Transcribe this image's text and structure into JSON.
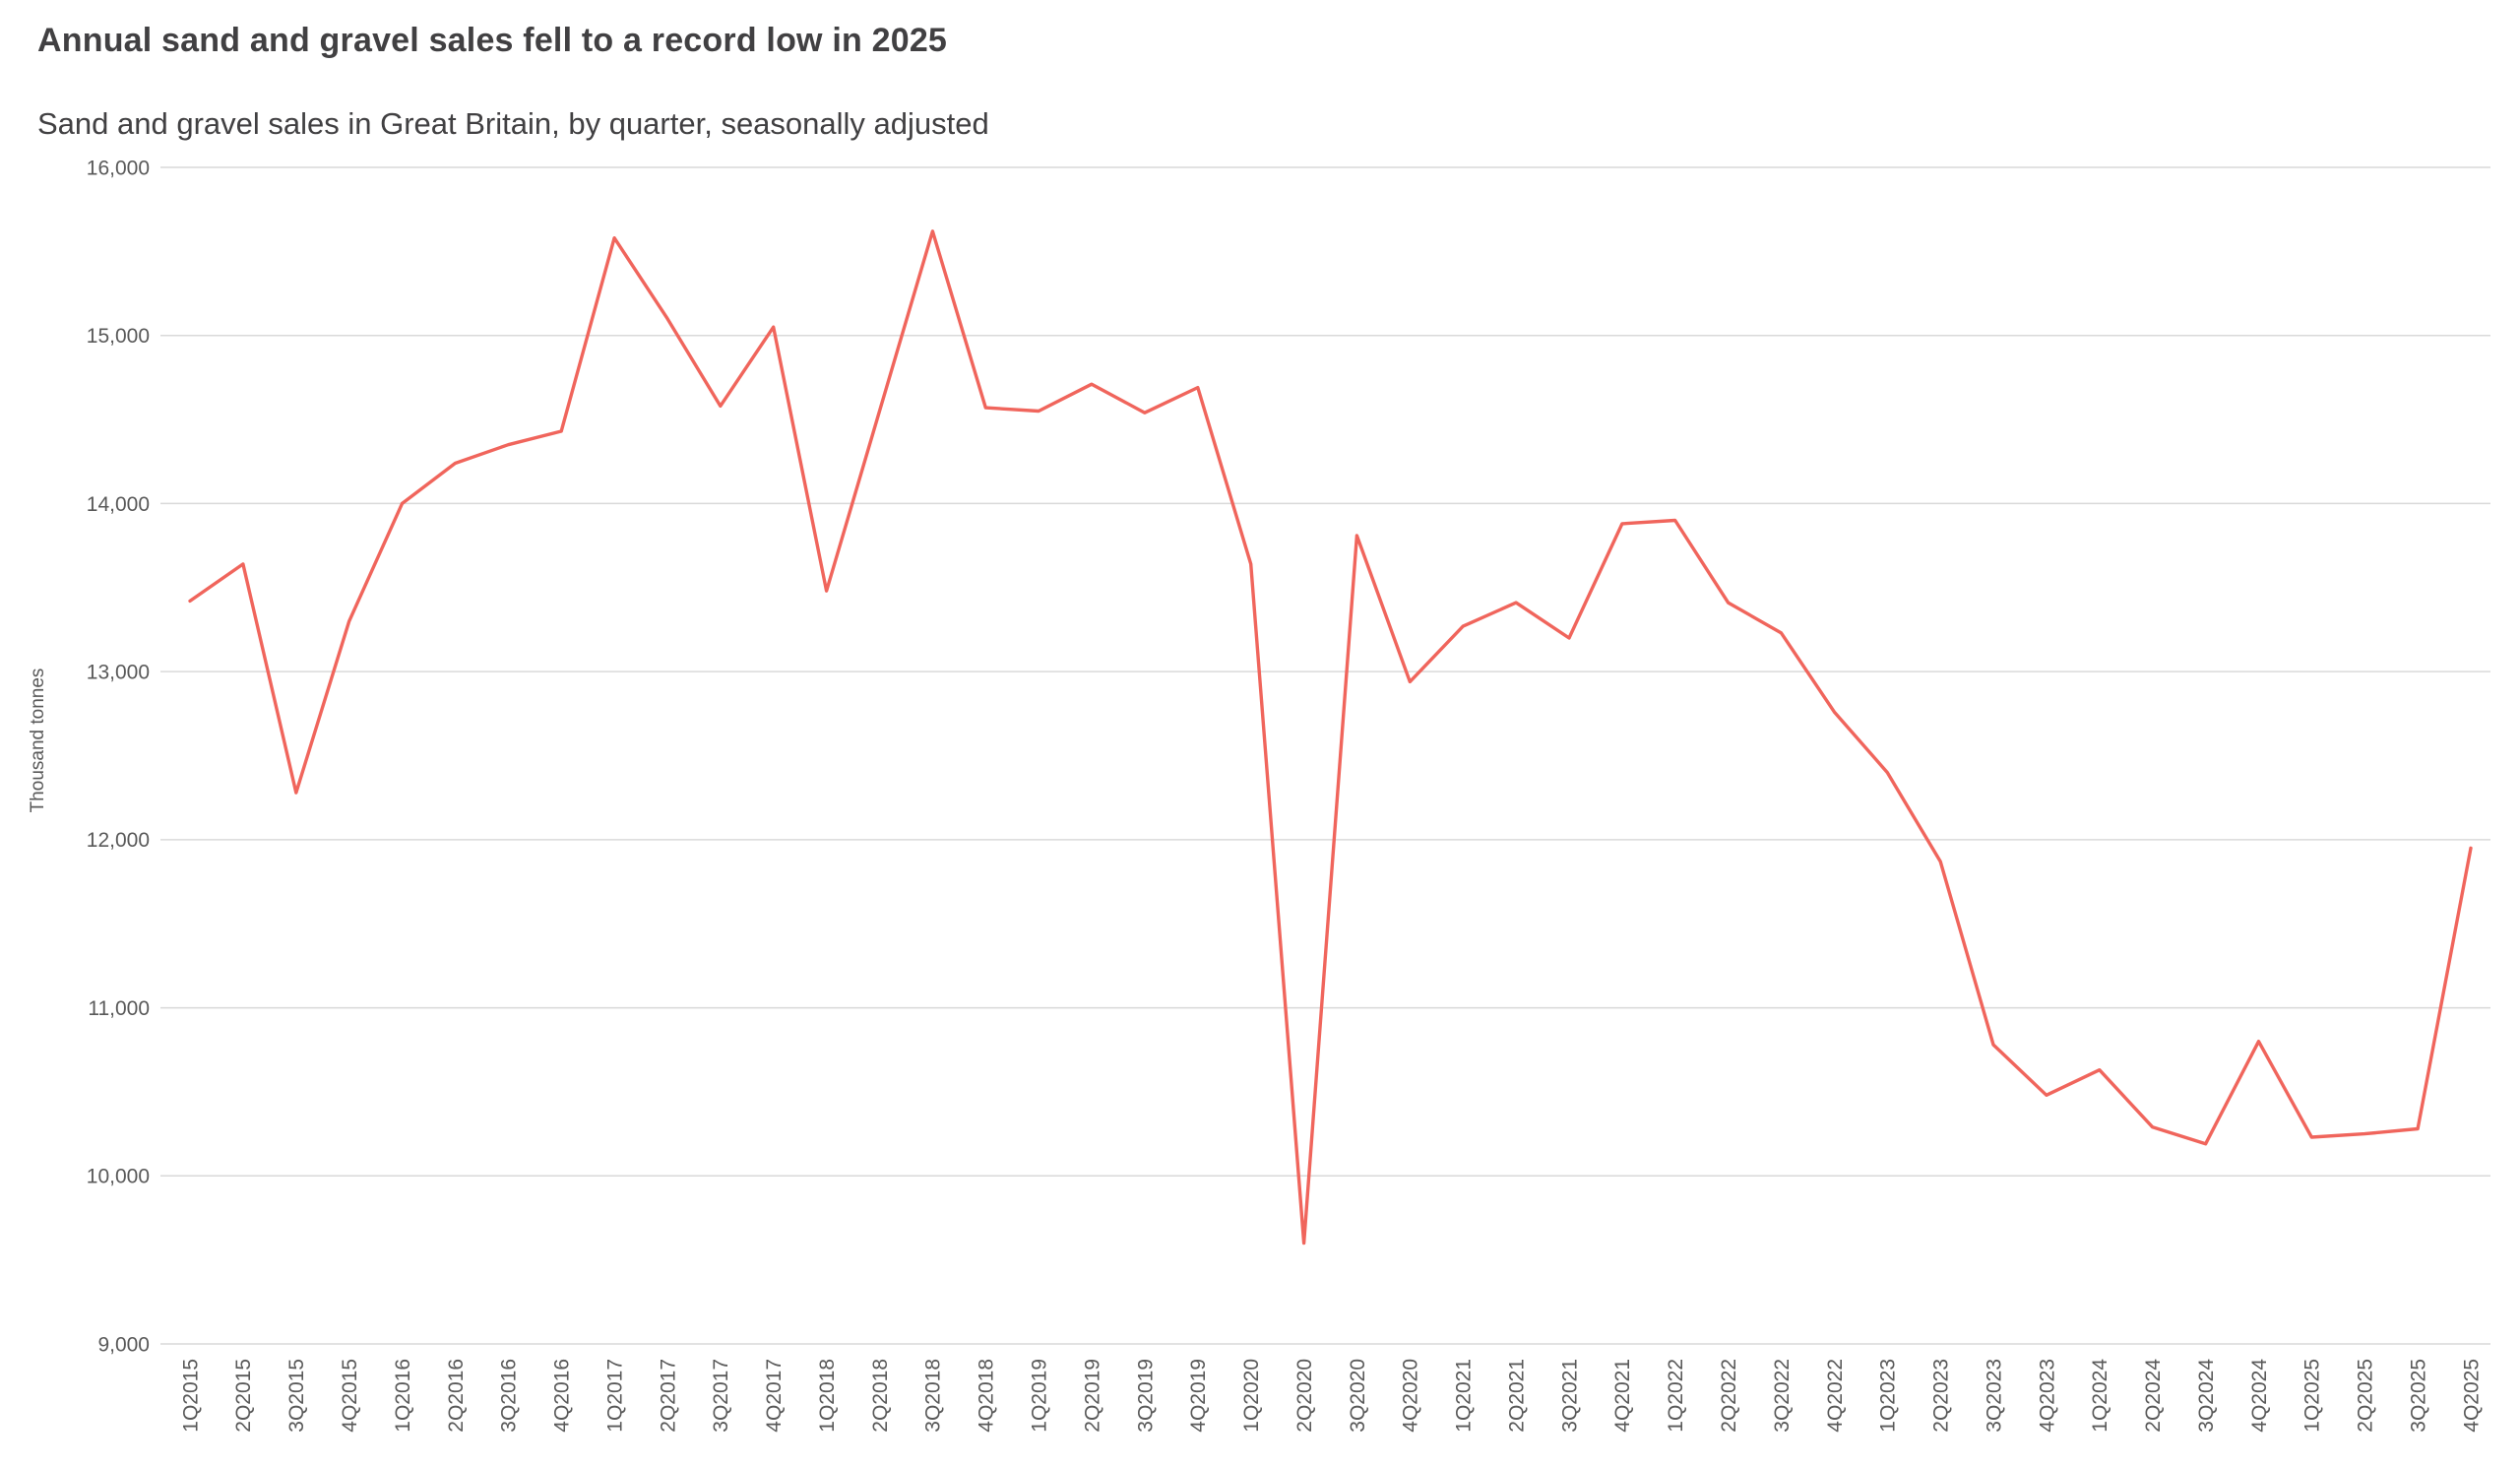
{
  "header": {
    "title": "Annual sand and gravel sales fell to a record low in 2025",
    "subtitle": "Sand and gravel sales in Great Britain, by quarter, seasonally adjusted"
  },
  "chart_data": {
    "type": "line",
    "title": "Annual sand and gravel sales fell to a record low in 2025",
    "subtitle": "Sand and gravel sales in Great Britain, by quarter, seasonally adjusted",
    "xlabel": "",
    "ylabel": "Thousand tonnes",
    "ylim": [
      9000,
      16000
    ],
    "yticks": [
      9000,
      10000,
      11000,
      12000,
      13000,
      14000,
      15000,
      16000
    ],
    "ytick_labels": [
      "9,000",
      "10,000",
      "11,000",
      "12,000",
      "13,000",
      "14,000",
      "15,000",
      "16,000"
    ],
    "grid": true,
    "legend_position": "none",
    "line_color": "#f0655c",
    "grid_color": "#d9d9d9",
    "text_color": "#595959",
    "categories": [
      "1Q2015",
      "2Q2015",
      "3Q2015",
      "4Q2015",
      "1Q2016",
      "2Q2016",
      "3Q2016",
      "4Q2016",
      "1Q2017",
      "2Q2017",
      "3Q2017",
      "4Q2017",
      "1Q2018",
      "2Q2018",
      "3Q2018",
      "4Q2018",
      "1Q2019",
      "2Q2019",
      "3Q2019",
      "4Q2019",
      "1Q2020",
      "2Q2020",
      "3Q2020",
      "4Q2020",
      "1Q2021",
      "2Q2021",
      "3Q2021",
      "4Q2021",
      "1Q2022",
      "2Q2022",
      "3Q2022",
      "4Q2022",
      "1Q2023",
      "2Q2023",
      "3Q2023",
      "4Q2023",
      "1Q2024",
      "2Q2024",
      "3Q2024",
      "4Q2024",
      "1Q2025",
      "2Q2025",
      "3Q2025",
      "4Q2025"
    ],
    "values": [
      13420,
      13640,
      12280,
      13300,
      14000,
      14240,
      14350,
      14430,
      15580,
      15100,
      14580,
      15050,
      13480,
      14550,
      15620,
      14570,
      14550,
      14710,
      14540,
      14690,
      13640,
      9600,
      13810,
      12940,
      13270,
      13410,
      13200,
      13880,
      13900,
      13410,
      13230,
      12760,
      12400,
      11870,
      10780,
      10480,
      10630,
      10290,
      10190,
      10800,
      10230,
      10250,
      10280,
      11950
    ]
  }
}
